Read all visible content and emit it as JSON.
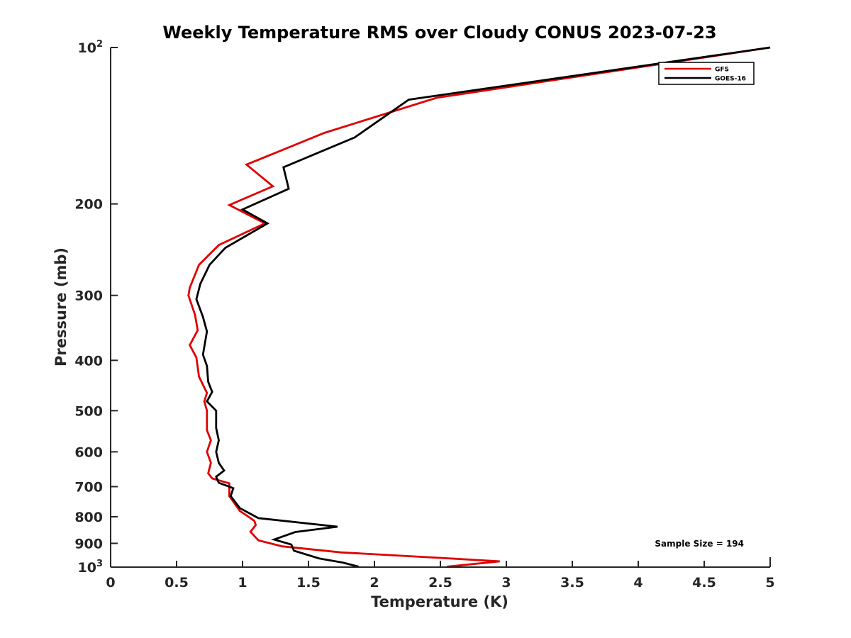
{
  "chart_data": {
    "type": "line",
    "title": "Weekly Temperature RMS over Cloudy CONUS 2023-07-23",
    "xlabel": "Temperature (K)",
    "ylabel": "Pressure (mb)",
    "xlim": [
      0,
      5
    ],
    "ylim": [
      1000,
      100
    ],
    "yscale": "log",
    "xticks": [
      0,
      0.5,
      1,
      1.5,
      2,
      2.5,
      3,
      3.5,
      4,
      4.5,
      5
    ],
    "xtick_labels": [
      "0",
      "0.5",
      "1",
      "1.5",
      "2",
      "2.5",
      "3",
      "3.5",
      "4",
      "4.5",
      "5"
    ],
    "yticks": [
      {
        "value": 100,
        "base": "10",
        "exp": "2"
      },
      {
        "value": 200,
        "label": "200"
      },
      {
        "value": 300,
        "label": "300"
      },
      {
        "value": 400,
        "label": "400"
      },
      {
        "value": 500,
        "label": "500"
      },
      {
        "value": 600,
        "label": "600"
      },
      {
        "value": 700,
        "label": "700"
      },
      {
        "value": 800,
        "label": "800"
      },
      {
        "value": 900,
        "label": "900"
      },
      {
        "value": 1000,
        "base": "10",
        "exp": "3"
      }
    ],
    "legend_position": "top-right",
    "annotation": "Sample Size = 194",
    "series": [
      {
        "name": "GFS",
        "color": "#e00000",
        "points": [
          [
            5.0,
            100
          ],
          [
            2.47,
            125
          ],
          [
            1.62,
            146
          ],
          [
            1.03,
            168
          ],
          [
            1.23,
            185
          ],
          [
            0.9,
            201
          ],
          [
            1.17,
            218
          ],
          [
            0.82,
            240
          ],
          [
            0.67,
            262
          ],
          [
            0.6,
            290
          ],
          [
            0.59,
            300
          ],
          [
            0.64,
            327
          ],
          [
            0.66,
            350
          ],
          [
            0.6,
            374
          ],
          [
            0.65,
            395
          ],
          [
            0.67,
            430
          ],
          [
            0.73,
            462
          ],
          [
            0.71,
            480
          ],
          [
            0.73,
            500
          ],
          [
            0.73,
            545
          ],
          [
            0.76,
            570
          ],
          [
            0.73,
            600
          ],
          [
            0.76,
            630
          ],
          [
            0.74,
            660
          ],
          [
            0.77,
            675
          ],
          [
            0.9,
            690
          ],
          [
            0.9,
            730
          ],
          [
            0.98,
            780
          ],
          [
            1.03,
            795
          ],
          [
            1.09,
            815
          ],
          [
            1.1,
            830
          ],
          [
            1.06,
            855
          ],
          [
            1.12,
            888
          ],
          [
            1.3,
            912
          ],
          [
            1.75,
            937
          ],
          [
            2.5,
            960
          ],
          [
            2.95,
            975
          ],
          [
            2.55,
            998
          ]
        ]
      },
      {
        "name": "GOES-16",
        "color": "#000000",
        "points": [
          [
            5.0,
            100
          ],
          [
            2.26,
            126
          ],
          [
            1.85,
            149
          ],
          [
            1.31,
            170
          ],
          [
            1.35,
            187
          ],
          [
            1.0,
            205
          ],
          [
            1.19,
            218
          ],
          [
            0.87,
            243
          ],
          [
            0.75,
            262
          ],
          [
            0.68,
            285
          ],
          [
            0.65,
            305
          ],
          [
            0.7,
            330
          ],
          [
            0.73,
            352
          ],
          [
            0.7,
            390
          ],
          [
            0.73,
            410
          ],
          [
            0.74,
            440
          ],
          [
            0.77,
            460
          ],
          [
            0.73,
            480
          ],
          [
            0.8,
            500
          ],
          [
            0.8,
            540
          ],
          [
            0.82,
            570
          ],
          [
            0.8,
            600
          ],
          [
            0.82,
            630
          ],
          [
            0.86,
            652
          ],
          [
            0.8,
            670
          ],
          [
            0.82,
            688
          ],
          [
            0.93,
            705
          ],
          [
            0.91,
            730
          ],
          [
            0.98,
            770
          ],
          [
            1.12,
            805
          ],
          [
            1.72,
            836
          ],
          [
            1.4,
            856
          ],
          [
            1.24,
            885
          ],
          [
            1.37,
            905
          ],
          [
            1.39,
            930
          ],
          [
            1.58,
            962
          ],
          [
            1.76,
            980
          ],
          [
            1.88,
            998
          ]
        ]
      }
    ]
  }
}
